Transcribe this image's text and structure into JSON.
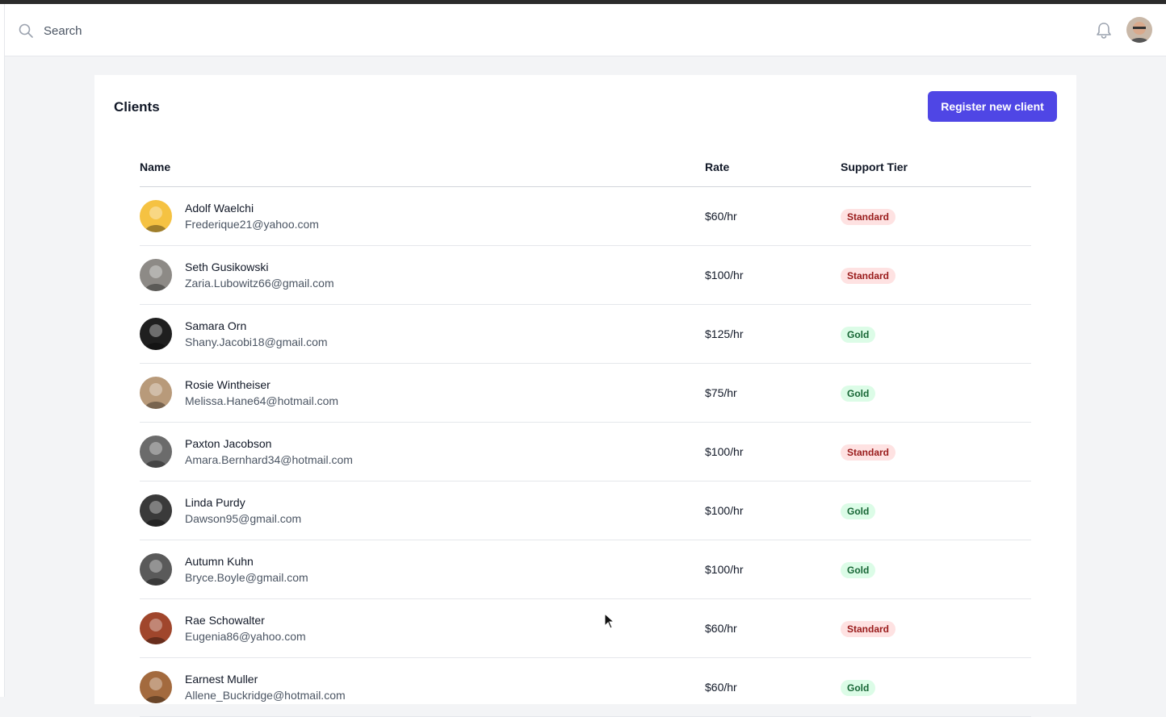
{
  "header": {
    "search_placeholder": "Search",
    "icons": [
      "search-icon",
      "bell-icon",
      "user-avatar"
    ]
  },
  "page": {
    "title": "Clients",
    "register_label": "Register new client"
  },
  "table": {
    "columns": [
      "Name",
      "Rate",
      "Support Tier"
    ],
    "rows": [
      {
        "name": "Adolf Waelchi",
        "email": "Frederique21@yahoo.com",
        "rate": "$60/hr",
        "tier": "Standard",
        "avatar_color": "#f5c242"
      },
      {
        "name": "Seth Gusikowski",
        "email": "Zaria.Lubowitz66@gmail.com",
        "rate": "$100/hr",
        "tier": "Standard",
        "avatar_color": "#8d8a86"
      },
      {
        "name": "Samara Orn",
        "email": "Shany.Jacobi18@gmail.com",
        "rate": "$125/hr",
        "tier": "Gold",
        "avatar_color": "#1f1f1f"
      },
      {
        "name": "Rosie Wintheiser",
        "email": "Melissa.Hane64@hotmail.com",
        "rate": "$75/hr",
        "tier": "Gold",
        "avatar_color": "#b89a7a"
      },
      {
        "name": "Paxton Jacobson",
        "email": "Amara.Bernhard34@hotmail.com",
        "rate": "$100/hr",
        "tier": "Standard",
        "avatar_color": "#6b6b6b"
      },
      {
        "name": "Linda Purdy",
        "email": "Dawson95@gmail.com",
        "rate": "$100/hr",
        "tier": "Gold",
        "avatar_color": "#3a3a3a"
      },
      {
        "name": "Autumn Kuhn",
        "email": "Bryce.Boyle@gmail.com",
        "rate": "$100/hr",
        "tier": "Gold",
        "avatar_color": "#5a5a5a"
      },
      {
        "name": "Rae Schowalter",
        "email": "Eugenia86@yahoo.com",
        "rate": "$60/hr",
        "tier": "Standard",
        "avatar_color": "#a0462c"
      },
      {
        "name": "Earnest Muller",
        "email": "Allene_Buckridge@hotmail.com",
        "rate": "$60/hr",
        "tier": "Gold",
        "avatar_color": "#a36a3e"
      }
    ]
  },
  "colors": {
    "accent": "#4f46e5",
    "standard_bg": "#fee2e2",
    "standard_text": "#991b1b",
    "gold_bg": "#dcfce7",
    "gold_text": "#166534"
  }
}
